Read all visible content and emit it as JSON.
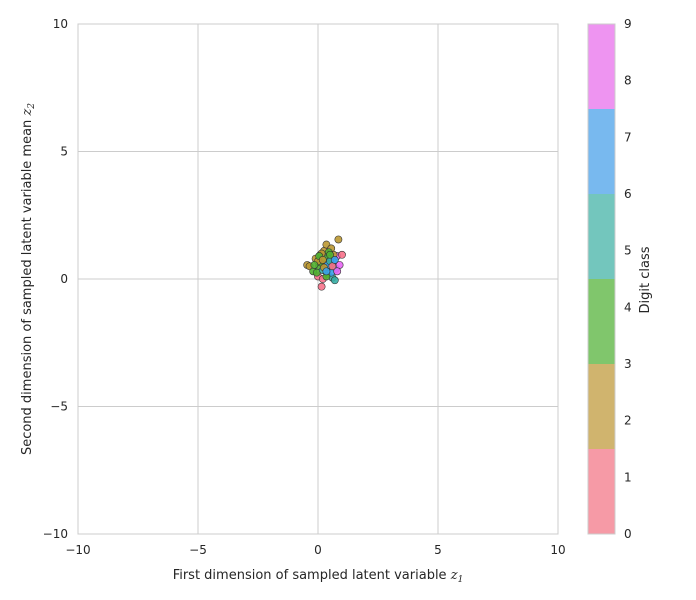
{
  "chart_data": {
    "type": "scatter",
    "title": "",
    "xlabel": "First dimension of sampled latent variable",
    "xlabel_math": "z",
    "xlabel_math_sub": "1",
    "ylabel": "Second dimension of sampled latent variable mean",
    "ylabel_math": "z",
    "ylabel_math_sub": "2",
    "xlim": [
      -10,
      10
    ],
    "ylim": [
      -10,
      10
    ],
    "xticks": [
      -10,
      -5,
      0,
      5,
      10
    ],
    "yticks": [
      -10,
      -5,
      0,
      5,
      10
    ],
    "xtick_labels": [
      "−10",
      "−5",
      "0",
      "5",
      "10"
    ],
    "ytick_labels": [
      "−10",
      "−5",
      "0",
      "5",
      "10"
    ],
    "grid": true,
    "colorbar": {
      "label": "Digit class",
      "ticks": [
        0,
        1,
        2,
        3,
        4,
        5,
        6,
        7,
        8,
        9
      ],
      "tick_labels": [
        "0",
        "1",
        "2",
        "3",
        "4",
        "5",
        "6",
        "7",
        "8",
        "9"
      ],
      "range": [
        0,
        9
      ],
      "bands": [
        {
          "from": 0,
          "to": 1.5,
          "color": "#f69aa6"
        },
        {
          "from": 1.5,
          "to": 3,
          "color": "#d0b46e"
        },
        {
          "from": 3,
          "to": 4.5,
          "color": "#80c66c"
        },
        {
          "from": 4.5,
          "to": 6,
          "color": "#73c6bd"
        },
        {
          "from": 6,
          "to": 7.5,
          "color": "#78b9ef"
        },
        {
          "from": 7.5,
          "to": 9,
          "color": "#ee94f1"
        }
      ]
    },
    "class_colors": [
      "#f77189",
      "#f77189",
      "#bb9832",
      "#bb9832",
      "#50b131",
      "#50b131",
      "#36ada4",
      "#3ba3ec",
      "#3ba3ec",
      "#e866f4"
    ],
    "points": [
      {
        "x": -0.45,
        "y": 0.55,
        "c": 2
      },
      {
        "x": -0.35,
        "y": 0.5,
        "c": 2
      },
      {
        "x": -0.2,
        "y": 0.3,
        "c": 4
      },
      {
        "x": -0.1,
        "y": 0.8,
        "c": 3
      },
      {
        "x": 0.0,
        "y": 0.1,
        "c": 0
      },
      {
        "x": 0.05,
        "y": 0.5,
        "c": 5
      },
      {
        "x": 0.1,
        "y": 0.95,
        "c": 4
      },
      {
        "x": 0.15,
        "y": -0.3,
        "c": 1
      },
      {
        "x": 0.2,
        "y": 0.0,
        "c": 0
      },
      {
        "x": 0.25,
        "y": 1.1,
        "c": 3
      },
      {
        "x": 0.3,
        "y": 0.6,
        "c": 6
      },
      {
        "x": 0.35,
        "y": 1.35,
        "c": 2
      },
      {
        "x": 0.4,
        "y": 0.2,
        "c": 4
      },
      {
        "x": 0.45,
        "y": 0.85,
        "c": 7
      },
      {
        "x": 0.5,
        "y": 0.45,
        "c": 5
      },
      {
        "x": 0.55,
        "y": 1.2,
        "c": 2
      },
      {
        "x": 0.6,
        "y": 0.05,
        "c": 6
      },
      {
        "x": 0.65,
        "y": 0.7,
        "c": 8
      },
      {
        "x": 0.7,
        "y": -0.05,
        "c": 6
      },
      {
        "x": 0.75,
        "y": 0.4,
        "c": 7
      },
      {
        "x": 0.8,
        "y": 0.9,
        "c": 9
      },
      {
        "x": 0.85,
        "y": 1.55,
        "c": 2
      },
      {
        "x": 0.9,
        "y": 0.55,
        "c": 9
      },
      {
        "x": 1.0,
        "y": 0.95,
        "c": 0
      },
      {
        "x": -0.05,
        "y": 0.25,
        "c": 4
      },
      {
        "x": 0.1,
        "y": 0.65,
        "c": 5
      },
      {
        "x": 0.2,
        "y": 0.35,
        "c": 6
      },
      {
        "x": 0.3,
        "y": 0.8,
        "c": 4
      },
      {
        "x": 0.4,
        "y": 0.55,
        "c": 8
      },
      {
        "x": 0.55,
        "y": 0.25,
        "c": 7
      },
      {
        "x": 0.65,
        "y": 0.95,
        "c": 3
      },
      {
        "x": 0.15,
        "y": 1.0,
        "c": 3
      },
      {
        "x": 0.0,
        "y": 0.7,
        "c": 2
      },
      {
        "x": 0.5,
        "y": 0.7,
        "c": 6
      },
      {
        "x": 0.35,
        "y": 0.1,
        "c": 5
      },
      {
        "x": 0.6,
        "y": 0.5,
        "c": 1
      },
      {
        "x": 0.25,
        "y": 0.45,
        "c": 3
      },
      {
        "x": 0.45,
        "y": 1.05,
        "c": 4
      },
      {
        "x": 0.7,
        "y": 0.75,
        "c": 8
      },
      {
        "x": -0.15,
        "y": 0.55,
        "c": 5
      },
      {
        "x": 0.05,
        "y": 0.9,
        "c": 4
      },
      {
        "x": 0.35,
        "y": 0.3,
        "c": 7
      },
      {
        "x": 0.8,
        "y": 0.3,
        "c": 9
      },
      {
        "x": 0.2,
        "y": 0.75,
        "c": 2
      },
      {
        "x": 0.5,
        "y": 0.95,
        "c": 5
      }
    ]
  }
}
